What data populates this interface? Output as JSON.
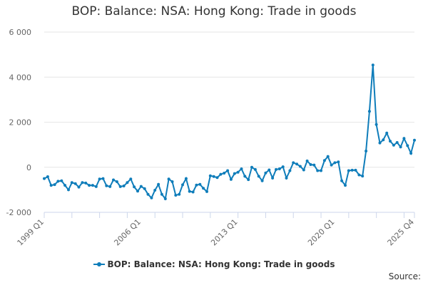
{
  "chart_data": {
    "type": "line",
    "title": "BOP: Balance: NSA: Hong Kong: Trade in goods",
    "xlabel": "",
    "ylabel": "",
    "ylim": [
      -2000,
      6000
    ],
    "y_ticks": [
      -2000,
      0,
      2000,
      4000,
      6000
    ],
    "y_tick_labels": [
      "-2 000",
      "0",
      "2 000",
      "4 000",
      "6 000"
    ],
    "x_tick_labels": [
      "1999 Q1",
      "2006 Q1",
      "2013 Q1",
      "2020 Q1",
      "2025 Q4"
    ],
    "grid": true,
    "legend_position": "bottom",
    "color": "#0f7dba",
    "series": [
      {
        "name": "BOP: Balance: NSA: Hong Kong: Trade in goods",
        "x": [
          "1999 Q1",
          "1999 Q2",
          "1999 Q3",
          "1999 Q4",
          "2000 Q1",
          "2000 Q2",
          "2000 Q3",
          "2000 Q4",
          "2001 Q1",
          "2001 Q2",
          "2001 Q3",
          "2001 Q4",
          "2002 Q1",
          "2002 Q2",
          "2002 Q3",
          "2002 Q4",
          "2003 Q1",
          "2003 Q2",
          "2003 Q3",
          "2003 Q4",
          "2004 Q1",
          "2004 Q2",
          "2004 Q3",
          "2004 Q4",
          "2005 Q1",
          "2005 Q2",
          "2005 Q3",
          "2005 Q4",
          "2006 Q1",
          "2006 Q2",
          "2006 Q3",
          "2006 Q4",
          "2007 Q1",
          "2007 Q2",
          "2007 Q3",
          "2007 Q4",
          "2008 Q1",
          "2008 Q2",
          "2008 Q3",
          "2008 Q4",
          "2009 Q1",
          "2009 Q2",
          "2009 Q3",
          "2009 Q4",
          "2010 Q1",
          "2010 Q2",
          "2010 Q3",
          "2010 Q4",
          "2011 Q1",
          "2011 Q2",
          "2011 Q3",
          "2011 Q4",
          "2012 Q1",
          "2012 Q2",
          "2012 Q3",
          "2012 Q4",
          "2013 Q1",
          "2013 Q2",
          "2013 Q3",
          "2013 Q4",
          "2014 Q1",
          "2014 Q2",
          "2014 Q3",
          "2014 Q4",
          "2015 Q1",
          "2015 Q2",
          "2015 Q3",
          "2015 Q4",
          "2016 Q1",
          "2016 Q2",
          "2016 Q3",
          "2016 Q4",
          "2017 Q1",
          "2017 Q2",
          "2017 Q3",
          "2017 Q4",
          "2018 Q1",
          "2018 Q2",
          "2018 Q3",
          "2018 Q4",
          "2019 Q1",
          "2019 Q2",
          "2019 Q3",
          "2019 Q4",
          "2020 Q1",
          "2020 Q2",
          "2020 Q3",
          "2020 Q4",
          "2021 Q1",
          "2021 Q2",
          "2021 Q3",
          "2021 Q4",
          "2022 Q1",
          "2022 Q2",
          "2022 Q3",
          "2022 Q4",
          "2023 Q1",
          "2023 Q2",
          "2023 Q3",
          "2023 Q4",
          "2024 Q1",
          "2024 Q2",
          "2024 Q3",
          "2024 Q4",
          "2025 Q1",
          "2025 Q2",
          "2025 Q3",
          "2025 Q4"
        ],
        "values": [
          -500,
          -420,
          -800,
          -770,
          -620,
          -600,
          -800,
          -1000,
          -680,
          -730,
          -880,
          -680,
          -700,
          -800,
          -800,
          -860,
          -520,
          -500,
          -820,
          -860,
          -560,
          -640,
          -860,
          -830,
          -680,
          -520,
          -870,
          -1060,
          -850,
          -950,
          -1200,
          -1360,
          -1020,
          -760,
          -1200,
          -1400,
          -520,
          -640,
          -1240,
          -1200,
          -780,
          -500,
          -1070,
          -1100,
          -790,
          -760,
          -930,
          -1080,
          -380,
          -410,
          -460,
          -310,
          -260,
          -150,
          -540,
          -280,
          -220,
          -70,
          -400,
          -550,
          0,
          -100,
          -400,
          -600,
          -250,
          -120,
          -480,
          -100,
          -70,
          20,
          -480,
          -150,
          200,
          140,
          40,
          -120,
          280,
          120,
          100,
          -150,
          -150,
          300,
          480,
          100,
          200,
          240,
          -600,
          -800,
          -150,
          -130,
          -130,
          -340,
          -390,
          720,
          2480,
          4540,
          1900,
          1080,
          1220,
          1520,
          1160,
          980,
          1100,
          900,
          1280,
          960,
          620,
          1200
        ]
      }
    ]
  },
  "source_label": "Source:"
}
